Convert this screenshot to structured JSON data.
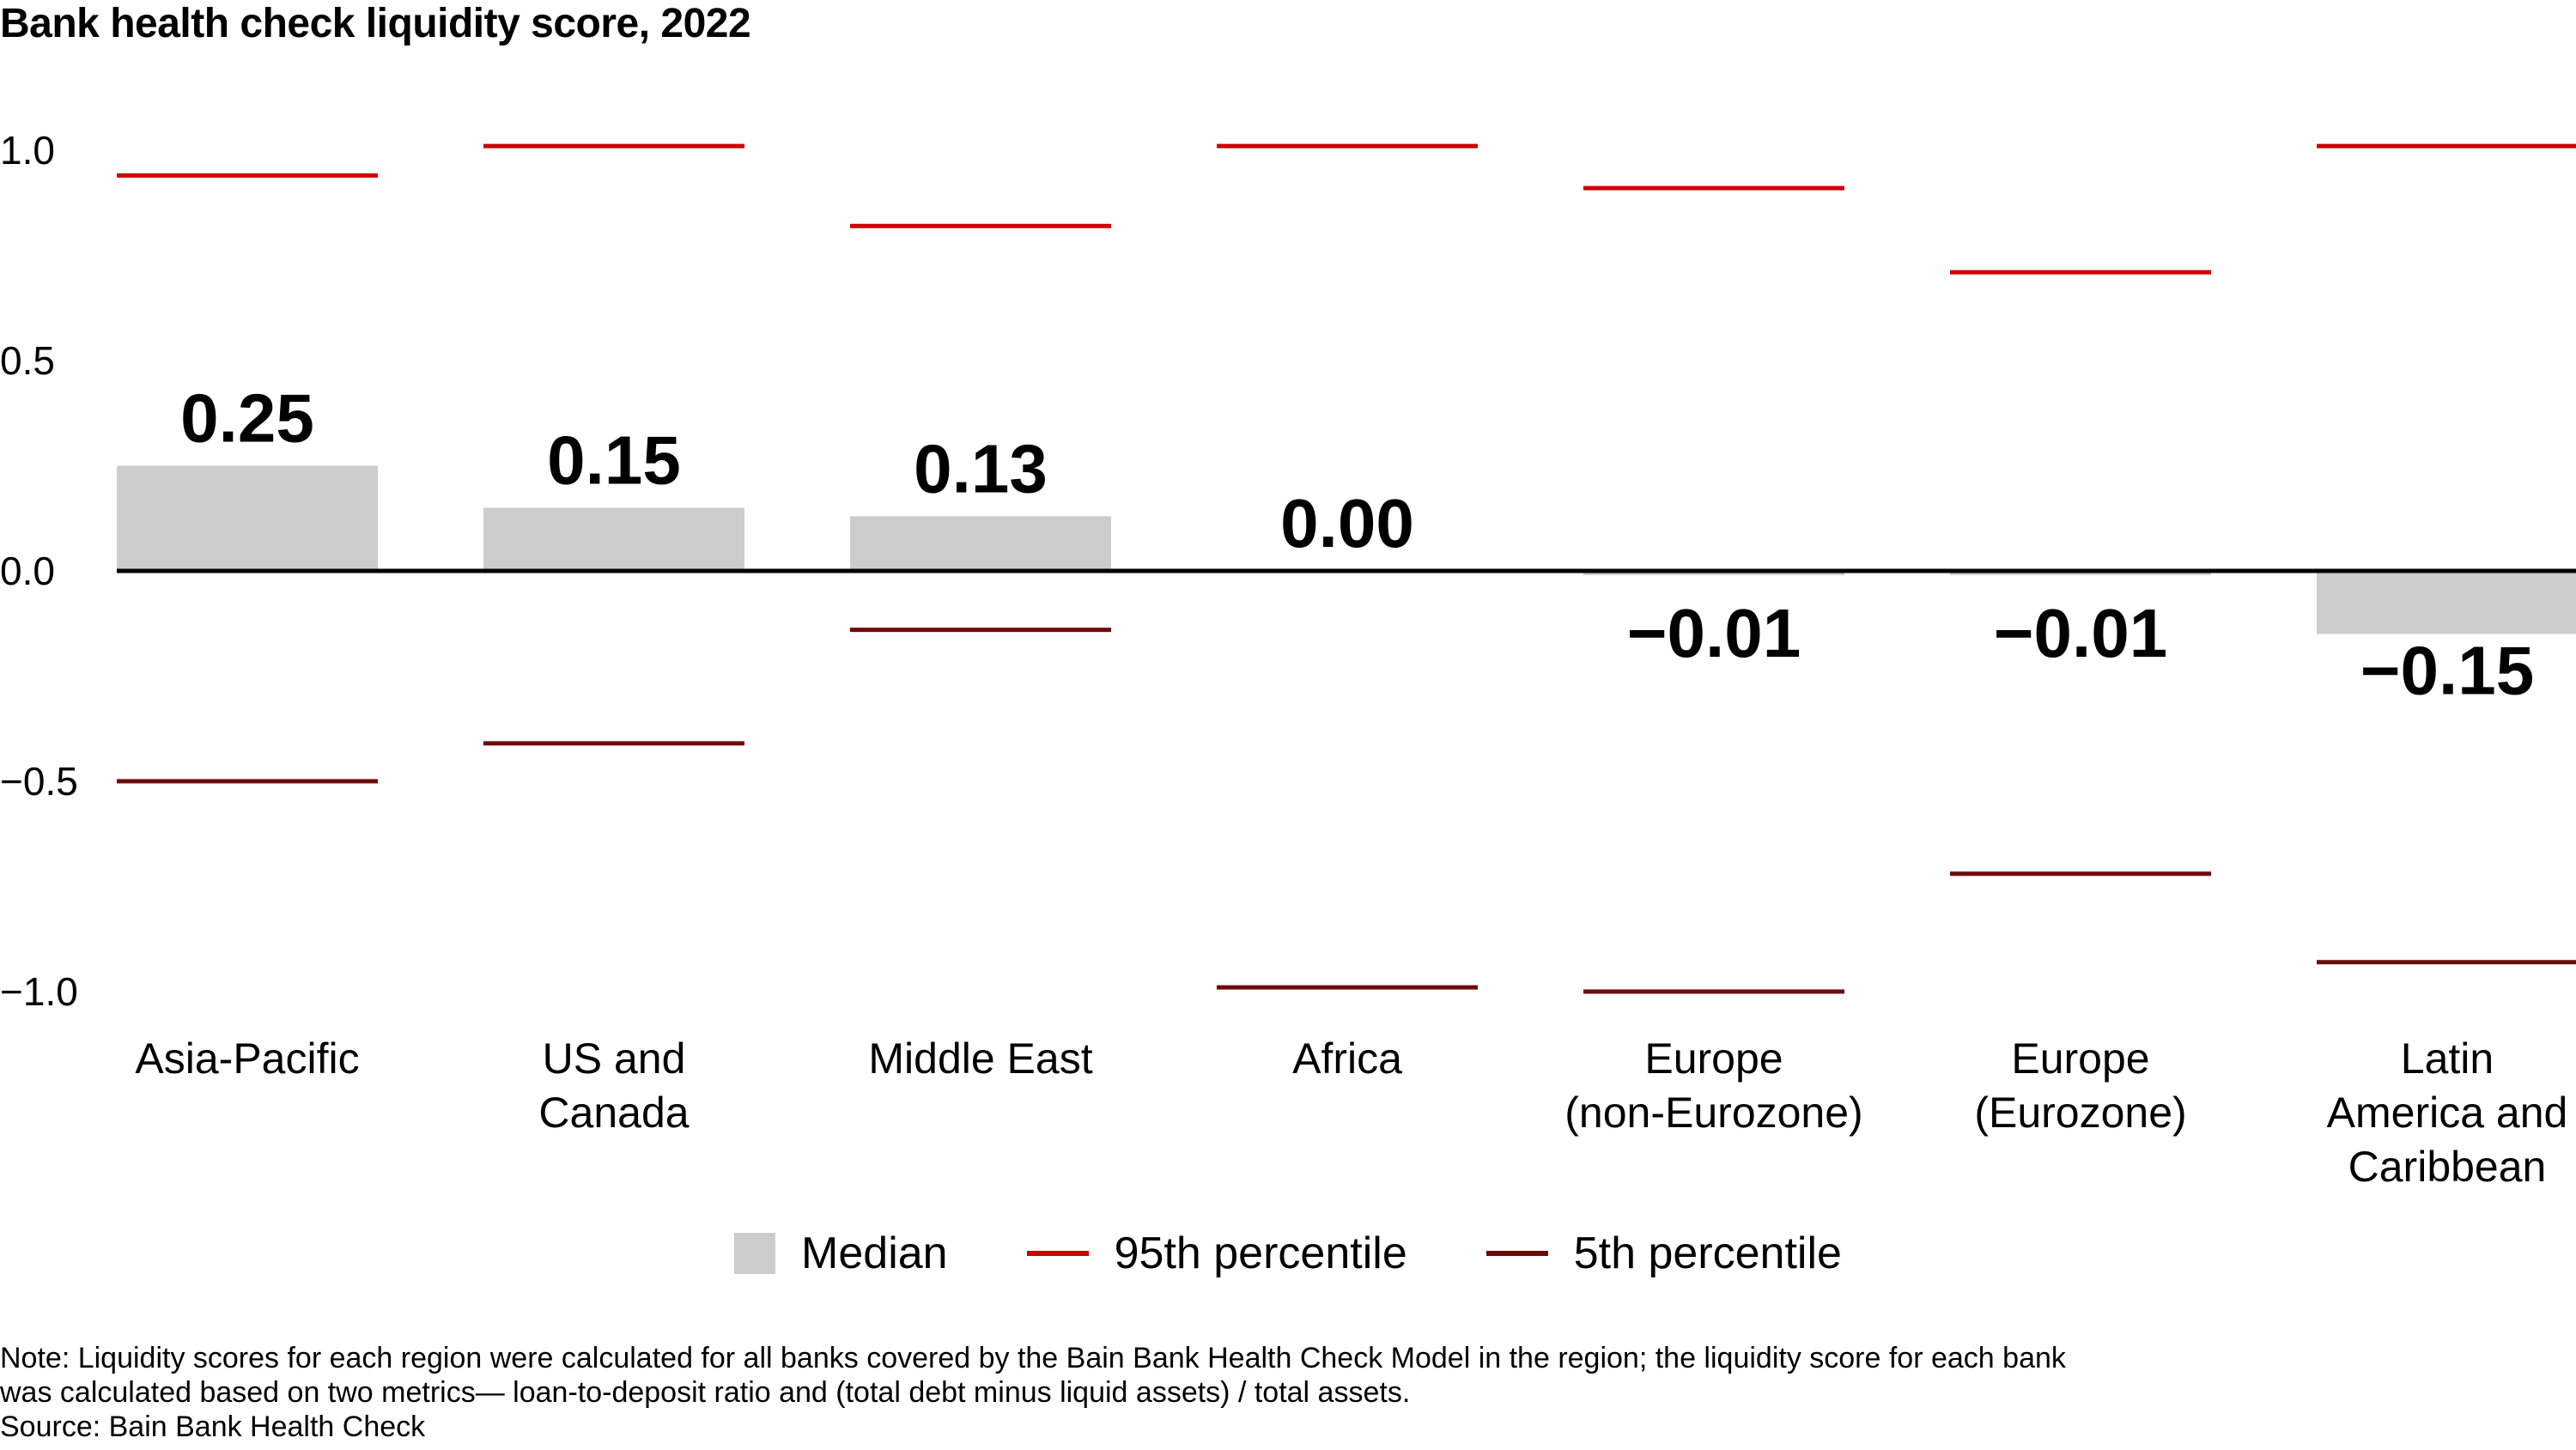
{
  "chart_data": {
    "type": "bar",
    "title": "Bank health check liquidity score, 2022",
    "categories": [
      [
        "Asia-Pacific"
      ],
      [
        "US and",
        "Canada"
      ],
      [
        "Middle East"
      ],
      [
        "Africa"
      ],
      [
        "Europe",
        "(non-Eurozone)"
      ],
      [
        "Europe",
        "(Eurozone)"
      ],
      [
        "Latin",
        "America and",
        "Caribbean"
      ]
    ],
    "series": [
      {
        "name": "Median",
        "values": [
          0.25,
          0.15,
          0.13,
          0.0,
          -0.01,
          -0.01,
          -0.15
        ],
        "color": "#cccccc"
      },
      {
        "name": "95th percentile",
        "values": [
          0.94,
          1.01,
          0.82,
          1.01,
          0.91,
          0.71,
          1.01
        ],
        "color": "#cc0000"
      },
      {
        "name": "5th percentile",
        "values": [
          -0.5,
          -0.41,
          -0.14,
          -0.99,
          -1.0,
          -0.72,
          -0.93
        ],
        "color": "#6e0a0a"
      }
    ],
    "value_labels": [
      "0.25",
      "0.15",
      "0.13",
      "0.00",
      "−0.01",
      "−0.01",
      "−0.15"
    ],
    "y_ticks": [
      {
        "value": 1.0,
        "label": "1.0"
      },
      {
        "value": 0.5,
        "label": "0.5"
      },
      {
        "value": 0.0,
        "label": "0.0"
      },
      {
        "value": -0.5,
        "label": "−0.5"
      },
      {
        "value": -1.0,
        "label": "−1.0"
      }
    ],
    "ylim": [
      -1.0,
      1.0
    ],
    "grid": false,
    "legend_position": "bottom-center"
  },
  "legend": {
    "median": "Median",
    "p95": "95th percentile",
    "p5": "5th percentile"
  },
  "note": {
    "line1": "Note: Liquidity scores for each region were calculated for all banks covered by the Bain Bank Health Check Model in the region; the liquidity score for each bank",
    "line2": "was calculated based on two metrics— loan-to-deposit ratio and (total debt minus liquid assets) / total assets.",
    "source": "Source: Bain Bank Health Check"
  }
}
